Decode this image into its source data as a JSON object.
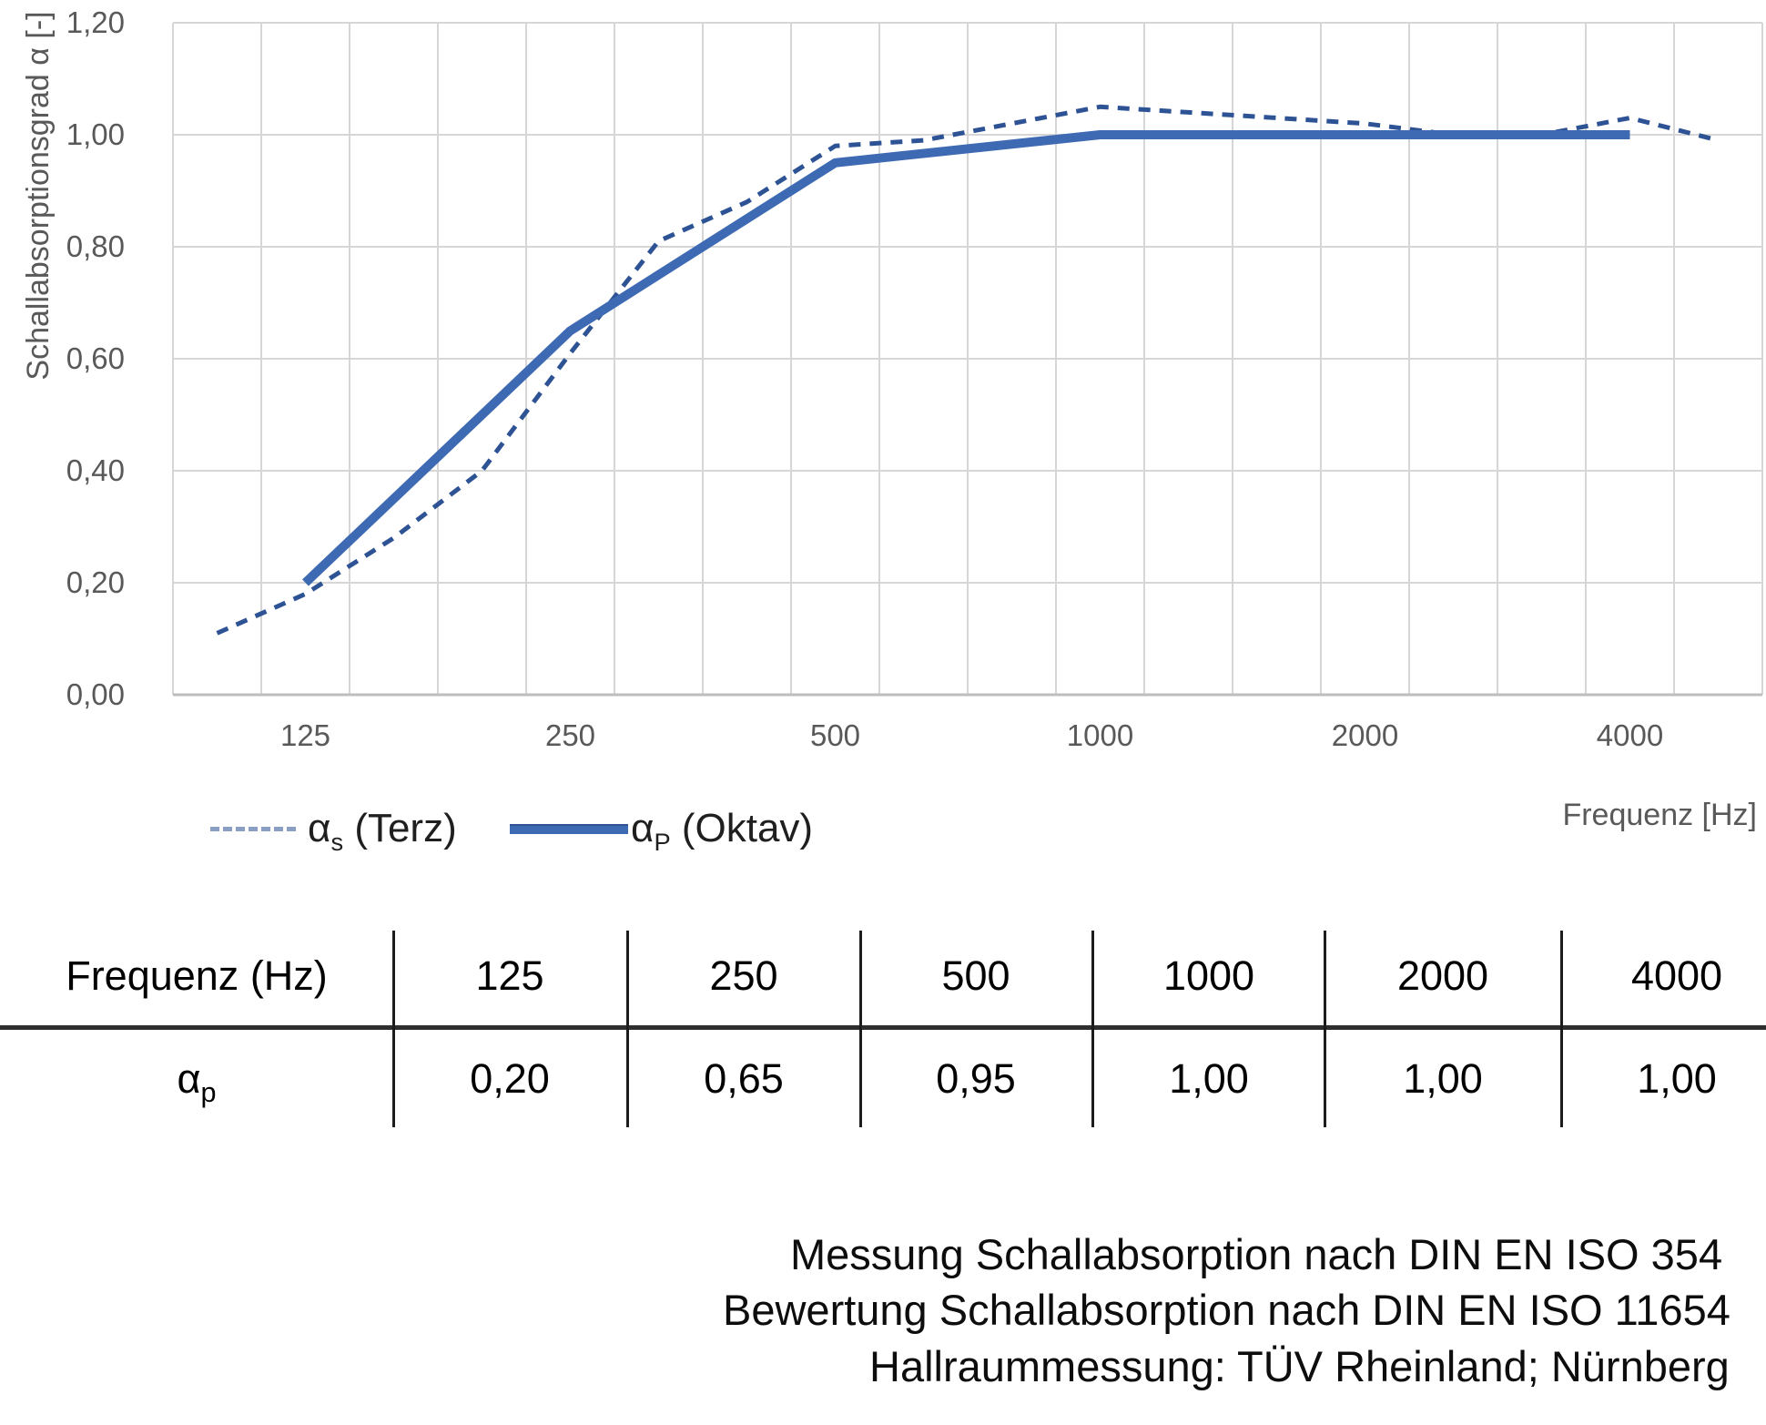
{
  "chart": {
    "y_axis": {
      "title": "Schallabsorptionsgrad α [-]",
      "ticks": [
        "1,20",
        "1,00",
        "0,80",
        "0,60",
        "0,40",
        "0,20",
        "0,00"
      ]
    },
    "x_axis": {
      "title": "Frequenz [Hz]",
      "ticks": [
        "125",
        "250",
        "500",
        "1000",
        "2000",
        "4000"
      ]
    },
    "legend": [
      {
        "sym": "α",
        "sub": "s",
        "rest": "(Terz)"
      },
      {
        "sym": "α",
        "sub": "P",
        "rest": "(Oktav)"
      }
    ]
  },
  "chart_data": {
    "type": "line",
    "title": "",
    "xlabel": "Frequenz [Hz]",
    "ylabel": "Schallabsorptionsgrad α [-]",
    "x_scale": "logarithmic (third-octave categories)",
    "categories": [
      100,
      125,
      160,
      200,
      250,
      315,
      400,
      500,
      630,
      800,
      1000,
      1250,
      1600,
      2000,
      2500,
      3150,
      4000,
      5000
    ],
    "x_tick_labels": [
      125,
      250,
      500,
      1000,
      2000,
      4000
    ],
    "ylim": [
      0,
      1.2
    ],
    "y_tick_step": 0.2,
    "grid": true,
    "legend_position": "bottom-left",
    "series": [
      {
        "name": "αs (Terz)",
        "line_style": "dashed",
        "color": "#2E5395",
        "x": [
          100,
          125,
          160,
          200,
          250,
          315,
          400,
          500,
          630,
          800,
          1000,
          1250,
          1600,
          2000,
          2500,
          3150,
          4000,
          5000
        ],
        "values": [
          0.11,
          0.18,
          0.28,
          0.4,
          0.61,
          0.81,
          0.88,
          0.98,
          0.99,
          1.02,
          1.05,
          1.04,
          1.03,
          1.02,
          1.0,
          1.0,
          1.03,
          0.99
        ]
      },
      {
        "name": "αP (Oktav)",
        "line_style": "solid",
        "color": "#3E6AB4",
        "x": [
          125,
          250,
          500,
          1000,
          2000,
          4000
        ],
        "values": [
          0.2,
          0.65,
          0.95,
          1.0,
          1.0,
          1.0
        ]
      }
    ]
  },
  "table": {
    "header_label": "Frequenz (Hz)",
    "columns": [
      "125",
      "250",
      "500",
      "1000",
      "2000",
      "4000"
    ],
    "row_label": {
      "sym": "α",
      "sub": "p"
    },
    "values": [
      "0,20",
      "0,65",
      "0,95",
      "1,00",
      "1,00",
      "1,00"
    ]
  },
  "footer": {
    "lines": [
      "Messung Schallabsorption nach DIN EN ISO 354",
      "Bewertung Schallabsorption nach DIN EN ISO 11654",
      "Hallraummessung: TÜV Rheinland; Nürnberg"
    ]
  },
  "colors": {
    "series_solid": "#3E6AB4",
    "series_dashed": "#2E5395",
    "legend_dash_swatch": "#8A9EC4",
    "grid": "#D6D6D6",
    "axis_line": "#BDBDBD",
    "tick_text": "#595959",
    "table_line": "#1c1c1c",
    "body_text": "#0d0d0d"
  }
}
